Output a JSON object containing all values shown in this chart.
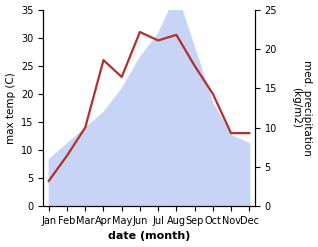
{
  "months": [
    "Jan",
    "Feb",
    "Mar",
    "Apr",
    "May",
    "Jun",
    "Jul",
    "Aug",
    "Sep",
    "Oct",
    "Nov",
    "Dec"
  ],
  "temperature": [
    4.5,
    9,
    14,
    26,
    23,
    31,
    29.5,
    30.5,
    25,
    20,
    13,
    13
  ],
  "precipitation_kg": [
    6,
    8,
    10,
    12,
    15,
    19,
    22,
    27,
    20,
    13,
    9,
    8
  ],
  "temp_color": "#b03030",
  "precip_fill_color": "#c8d4f5",
  "temp_ylim": [
    0,
    35
  ],
  "precip_ylim": [
    0,
    35
  ],
  "right_ylim": [
    0,
    25
  ],
  "temp_yticks": [
    0,
    5,
    10,
    15,
    20,
    25,
    30,
    35
  ],
  "right_yticks": [
    0,
    5,
    10,
    15,
    20,
    25
  ],
  "ylabel_left": "max temp (C)",
  "ylabel_right": "med. precipitation\n(kg/m2)",
  "xlabel": "date (month)",
  "label_fontsize": 7.5,
  "tick_fontsize": 7,
  "line_width": 1.6
}
